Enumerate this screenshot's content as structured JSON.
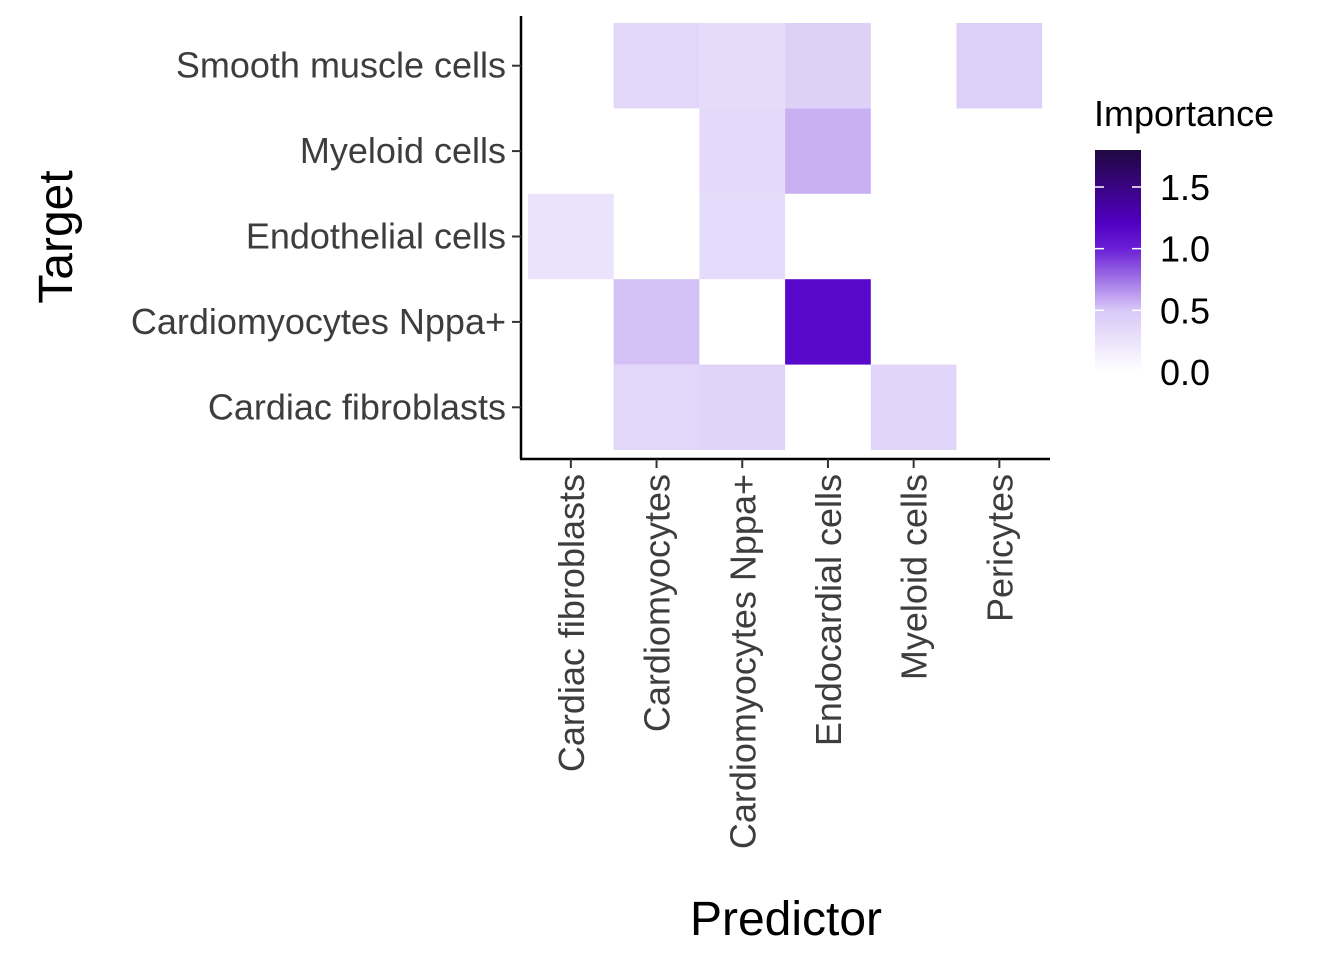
{
  "chart_data": {
    "type": "heatmap",
    "xlabel": "Predictor",
    "ylabel": "Target",
    "x_categories": [
      "Cardiac fibroblasts",
      "Cardiomyocytes",
      "Cardiomyocytes Nppa+",
      "Endocardial cells",
      "Myeloid cells",
      "Pericytes"
    ],
    "y_categories": [
      "Cardiac fibroblasts",
      "Cardiomyocytes Nppa+",
      "Endothelial cells",
      "Myeloid cells",
      "Smooth muscle cells"
    ],
    "cells": [
      {
        "x": "Cardiomyocytes",
        "y": "Smooth muscle cells",
        "value": 0.36
      },
      {
        "x": "Cardiomyocytes Nppa+",
        "y": "Smooth muscle cells",
        "value": 0.32
      },
      {
        "x": "Endocardial cells",
        "y": "Smooth muscle cells",
        "value": 0.42
      },
      {
        "x": "Pericytes",
        "y": "Smooth muscle cells",
        "value": 0.44
      },
      {
        "x": "Cardiomyocytes Nppa+",
        "y": "Myeloid cells",
        "value": 0.35
      },
      {
        "x": "Endocardial cells",
        "y": "Myeloid cells",
        "value": 0.57
      },
      {
        "x": "Cardiac fibroblasts",
        "y": "Endothelial cells",
        "value": 0.26
      },
      {
        "x": "Cardiomyocytes Nppa+",
        "y": "Endothelial cells",
        "value": 0.33
      },
      {
        "x": "Cardiomyocytes",
        "y": "Cardiomyocytes Nppa+",
        "value": 0.52
      },
      {
        "x": "Endocardial cells",
        "y": "Cardiomyocytes Nppa+",
        "value": 1.15
      },
      {
        "x": "Cardiomyocytes",
        "y": "Cardiac fibroblasts",
        "value": 0.36
      },
      {
        "x": "Cardiomyocytes Nppa+",
        "y": "Cardiac fibroblasts",
        "value": 0.4
      },
      {
        "x": "Myeloid cells",
        "y": "Cardiac fibroblasts",
        "value": 0.38
      }
    ],
    "legend": {
      "title": "Importance",
      "placement": "right",
      "range": [
        0,
        1.8
      ],
      "ticks": [
        0.0,
        0.5,
        1.0,
        1.5
      ],
      "tick_labels": [
        "0.0",
        "0.5",
        "1.0",
        "1.5"
      ],
      "color_stops": [
        {
          "value": 0.0,
          "color": "#ffffff"
        },
        {
          "value": 0.5,
          "color": "#d8c8f7"
        },
        {
          "value": 1.0,
          "color": "#6a1fd6"
        },
        {
          "value": 1.2,
          "color": "#5200c4"
        },
        {
          "value": 1.8,
          "color": "#200840"
        }
      ]
    },
    "grid": false
  }
}
